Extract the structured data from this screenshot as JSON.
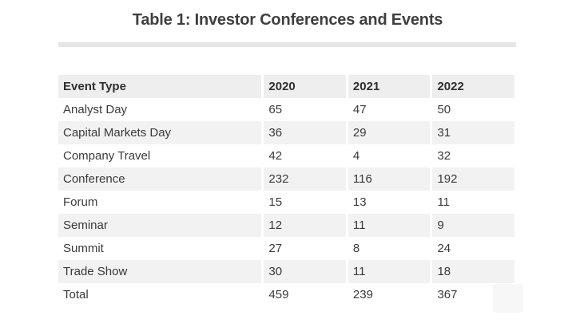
{
  "title": "Table 1: Investor Conferences and Events",
  "table": {
    "headers": [
      "Event Type",
      "2020",
      "2021",
      "2022"
    ],
    "rows": [
      [
        "Analyst Day",
        "65",
        "47",
        "50"
      ],
      [
        "Capital Markets Day",
        "36",
        "29",
        "31"
      ],
      [
        "Company Travel",
        "42",
        "4",
        "32"
      ],
      [
        "Conference",
        "232",
        "116",
        "192"
      ],
      [
        "Forum",
        "15",
        "13",
        "11"
      ],
      [
        "Seminar",
        "12",
        "11",
        "9"
      ],
      [
        "Summit",
        "27",
        "8",
        "24"
      ],
      [
        "Trade Show",
        "30",
        "11",
        "18"
      ],
      [
        "Total",
        "459",
        "239",
        "367"
      ]
    ]
  }
}
